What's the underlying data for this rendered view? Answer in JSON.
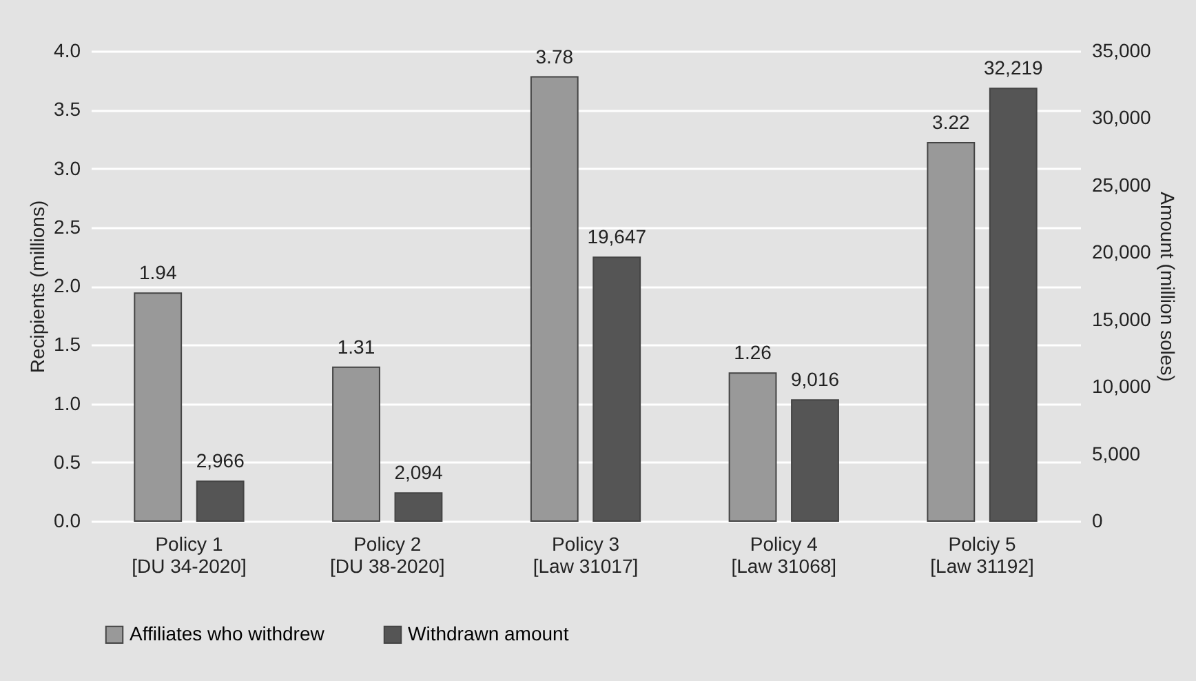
{
  "chart_data": {
    "type": "bar",
    "categories": [
      "Policy 1\n[DU 34-2020]",
      "Policy 2\n[DU 38-2020]",
      "Policy 3\n[Law 31017]",
      "Policy 4\n[Law 31068]",
      "Polciy 5\n[Law 31192]"
    ],
    "ylabel": "Recipients (millions)",
    "y2label": "Amount (million soles)",
    "ylim": [
      0,
      4
    ],
    "yticks": [
      {
        "value": 0,
        "label": "0.0"
      },
      0.5,
      {
        "value": 1,
        "label": "1.0"
      },
      1.5,
      {
        "value": 2,
        "label": "2.0"
      },
      2.5,
      {
        "value": 3,
        "label": "3.0"
      },
      3.5,
      {
        "value": 4,
        "label": "4.0"
      }
    ],
    "y2lim": [
      0,
      35000
    ],
    "y2ticks": [
      0,
      {
        "value": 5000,
        "label": "5,000"
      },
      {
        "value": 10000,
        "label": "10,000"
      },
      {
        "value": 15000,
        "label": "15,000"
      },
      {
        "value": 20000,
        "label": "20,000"
      },
      {
        "value": 25000,
        "label": "25,000"
      },
      {
        "value": 30000,
        "label": "30,000"
      },
      {
        "value": 35000,
        "label": "35,000"
      }
    ],
    "series": [
      {
        "name": "Affiliates who withdrew",
        "color": "#999999",
        "values": [
          1.94,
          1.31,
          3.78,
          1.26,
          3.22
        ],
        "value_labels": [
          "1.94",
          "1.31",
          "3.78",
          "1.26",
          "3.22"
        ]
      },
      {
        "name": "Withdrawn amount",
        "color": "#555555",
        "axis": "y2",
        "values": [
          2966,
          2094,
          19647,
          9016,
          32219
        ],
        "value_labels": [
          "2,966",
          "2,094",
          "19,647",
          "9,016",
          "32,219"
        ]
      }
    ],
    "grid": "y",
    "legend": "bottom"
  }
}
